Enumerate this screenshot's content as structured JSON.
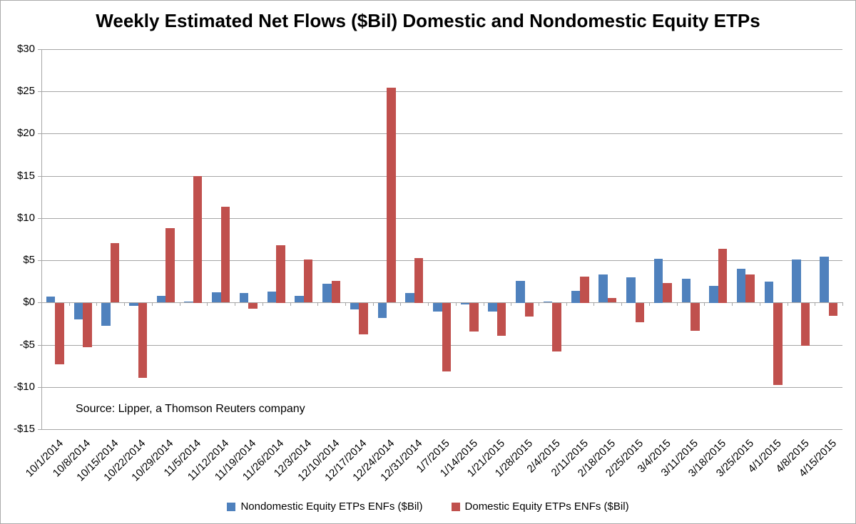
{
  "chart_data": {
    "type": "bar",
    "title": "Weekly Estimated Net Flows ($Bil) Domestic and Nondomestic Equity ETPs",
    "source_note": "Source: Lipper, a Thomson Reuters company",
    "categories": [
      "10/1/2014",
      "10/8/2014",
      "10/15/2014",
      "10/22/2014",
      "10/29/2014",
      "11/5/2014",
      "11/12/2014",
      "11/19/2014",
      "11/26/2014",
      "12/3/2014",
      "12/10/2014",
      "12/17/2014",
      "12/24/2014",
      "12/31/2014",
      "1/7/2015",
      "1/14/2015",
      "1/21/2015",
      "1/28/2015",
      "2/4/2015",
      "2/11/2015",
      "2/18/2015",
      "2/25/2015",
      "3/4/2015",
      "3/11/2015",
      "3/18/2015",
      "3/25/2015",
      "4/1/2015",
      "4/8/2015",
      "4/15/2015"
    ],
    "series": [
      {
        "name": "Nondomestic Equity ETPs ENFs ($Bil)",
        "color": "#4F81BD",
        "values": [
          0.7,
          -1.9,
          -2.7,
          -0.3,
          0.8,
          0.1,
          1.2,
          1.1,
          1.3,
          0.8,
          2.2,
          -0.8,
          -1.8,
          1.1,
          -1.0,
          -0.2,
          -1.0,
          2.6,
          0.1,
          1.4,
          3.3,
          3.0,
          5.2,
          2.8,
          2.0,
          4.0,
          2.5,
          5.1,
          5.4
        ]
      },
      {
        "name": "Domestic Equity ETPs ENFs ($Bil)",
        "color": "#C0504D",
        "values": [
          -7.3,
          -5.2,
          7.0,
          -8.9,
          8.8,
          15.0,
          11.3,
          -0.7,
          6.8,
          5.1,
          2.6,
          -3.7,
          25.4,
          5.3,
          -8.1,
          -3.4,
          -3.9,
          -1.6,
          -5.7,
          3.1,
          0.5,
          -2.3,
          2.3,
          -3.3,
          6.4,
          3.3,
          -9.7,
          -5.1,
          -1.5
        ]
      }
    ],
    "ylim": [
      -15,
      30
    ],
    "ytick_step": 5,
    "ytick_labels": [
      "$30",
      "$25",
      "$20",
      "$15",
      "$10",
      "$5",
      "$0",
      "-$5",
      "-$10",
      "-$15"
    ],
    "grid": true,
    "legend_position": "bottom",
    "axis_color": "#A6A6A6"
  }
}
